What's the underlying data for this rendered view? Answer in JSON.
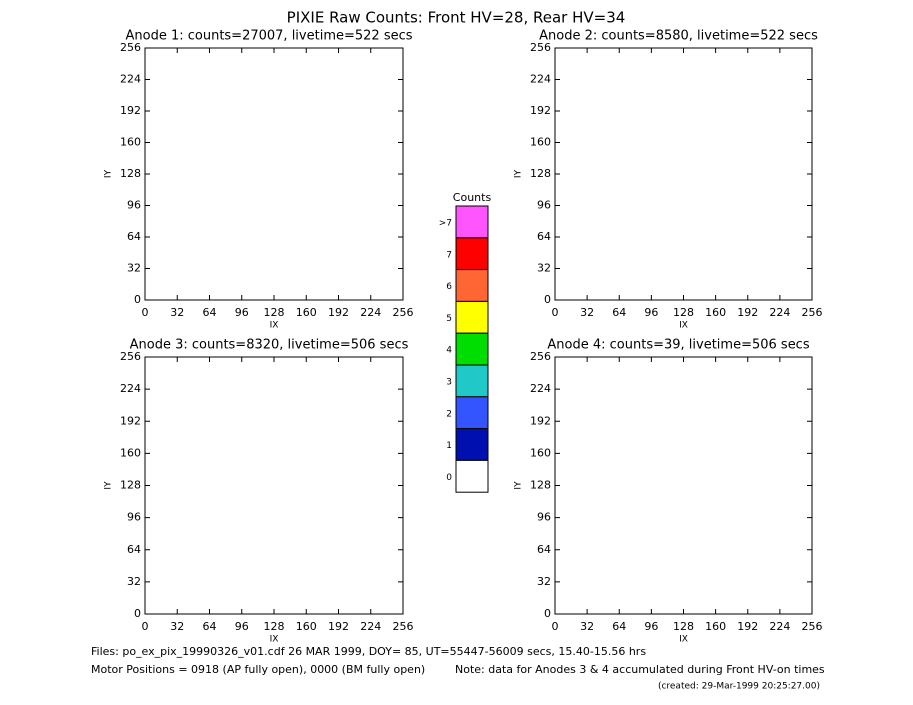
{
  "title": "PIXIE Raw Counts:  Front HV=28, Rear HV=34",
  "chart_data": [
    {
      "type": "heatmap",
      "title": "Anode 1: counts=27007, livetime=522 secs",
      "xlabel": "IX",
      "ylabel": "IY",
      "xlim": [
        0,
        256
      ],
      "ylim": [
        0,
        256
      ],
      "xticks": [
        0,
        32,
        64,
        96,
        128,
        160,
        192,
        224,
        256
      ],
      "yticks": [
        0,
        32,
        64,
        96,
        128,
        160,
        192,
        224,
        256
      ]
    },
    {
      "type": "heatmap",
      "title": "Anode 2: counts=8580, livetime=522 secs",
      "xlabel": "IX",
      "ylabel": "IY",
      "xlim": [
        0,
        256
      ],
      "ylim": [
        0,
        256
      ],
      "xticks": [
        0,
        32,
        64,
        96,
        128,
        160,
        192,
        224,
        256
      ],
      "yticks": [
        0,
        32,
        64,
        96,
        128,
        160,
        192,
        224,
        256
      ]
    },
    {
      "type": "heatmap",
      "title": "Anode 3: counts=8320, livetime=506 secs",
      "xlabel": "IX",
      "ylabel": "IY",
      "xlim": [
        0,
        256
      ],
      "ylim": [
        0,
        256
      ],
      "xticks": [
        0,
        32,
        64,
        96,
        128,
        160,
        192,
        224,
        256
      ],
      "yticks": [
        0,
        32,
        64,
        96,
        128,
        160,
        192,
        224,
        256
      ]
    },
    {
      "type": "heatmap",
      "title": "Anode 4: counts=39, livetime=506 secs",
      "xlabel": "IX",
      "ylabel": "IY",
      "xlim": [
        0,
        256
      ],
      "ylim": [
        0,
        256
      ],
      "xticks": [
        0,
        32,
        64,
        96,
        128,
        160,
        192,
        224,
        256
      ],
      "yticks": [
        0,
        32,
        64,
        96,
        128,
        160,
        192,
        224,
        256
      ]
    }
  ],
  "colorbar": {
    "title": "Counts",
    "labels": [
      ">7",
      "7",
      "6",
      "5",
      "4",
      "3",
      "2",
      "1",
      "0"
    ],
    "colors": [
      "#ff55ff",
      "#ff0000",
      "#ff6633",
      "#ffff00",
      "#00dd00",
      "#20c8c8",
      "#3355ff",
      "#0010b0",
      "#ffffff"
    ]
  },
  "footer": {
    "files": "Files: po_ex_pix_19990326_v01.cdf    26 MAR 1999, DOY= 85, UT=55447-56009 secs, 15.40-15.56 hrs",
    "motor": "Motor Positions = 0918 (AP fully open), 0000 (BM fully open)",
    "note": "Note: data for Anodes 3 & 4 accumulated during Front HV-on times",
    "created": "(created: 29-Mar-1999 20:25:27.00)"
  }
}
